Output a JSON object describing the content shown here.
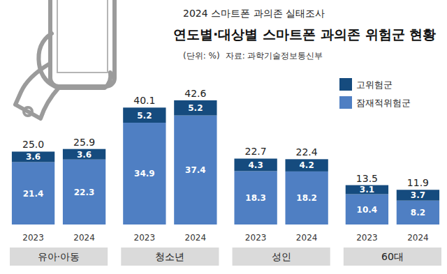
{
  "chart_data": {
    "type": "bar",
    "stacked": true,
    "data_labels": true,
    "tick_labels": "x",
    "legend": "top-right",
    "subtitle": "2024 스마트폰 과의존 실태조사",
    "title": "연도별·대상별 스마트폰 과의존 위험군 현황",
    "annotations": [
      "(단위: %)",
      "자료: 과학기술정보통신부"
    ],
    "groups": [
      "유아·아동",
      "청소년",
      "성인",
      "60대"
    ],
    "categories": [
      "2023",
      "2024",
      "2023",
      "2024",
      "2023",
      "2024",
      "2023",
      "2024"
    ],
    "series": [
      {
        "name": "잠재적위험군",
        "color": "#4f7fc3",
        "values": [
          21.4,
          22.3,
          34.9,
          37.4,
          18.3,
          18.2,
          10.4,
          8.2
        ]
      },
      {
        "name": "고위험군",
        "color": "#154b7e",
        "values": [
          3.6,
          3.6,
          5.2,
          5.2,
          4.3,
          4.2,
          3.1,
          3.7
        ]
      }
    ],
    "totals": [
      25,
      25.9,
      40.1,
      42.6,
      22.7,
      22.4,
      13.5,
      11.9
    ],
    "totals_labels": [
      "25.0",
      "25.9",
      "40.1",
      "42.6",
      "22.7",
      "22.4",
      "13.5",
      "11.9"
    ],
    "ylim": [
      0,
      44
    ]
  }
}
